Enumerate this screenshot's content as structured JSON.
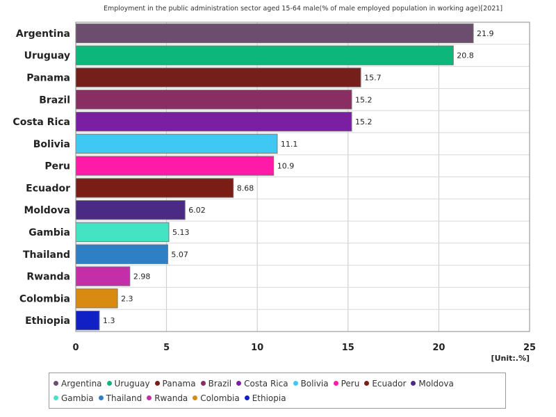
{
  "chart_data": {
    "type": "bar",
    "orientation": "horizontal",
    "title": "Employment in the public administration sector aged 15-64 male(% of male employed population in working age)[2021]",
    "unit_label": "[Unit:.%]",
    "xlim": [
      0,
      25
    ],
    "x_ticks": [
      "0",
      "5",
      "10",
      "15",
      "20",
      "25"
    ],
    "grid": true,
    "legend_position": "bottom",
    "categories": [
      "Argentina",
      "Uruguay",
      "Panama",
      "Brazil",
      "Costa Rica",
      "Bolivia",
      "Peru",
      "Ecuador",
      "Moldova",
      "Gambia",
      "Thailand",
      "Rwanda",
      "Colombia",
      "Ethiopia"
    ],
    "values": [
      21.9,
      20.8,
      15.7,
      15.2,
      15.2,
      11.1,
      10.9,
      8.68,
      6.02,
      5.13,
      5.07,
      2.98,
      2.3,
      1.3
    ],
    "value_labels": [
      "21.9",
      "20.8",
      "15.7",
      "15.2",
      "15.2",
      "11.1",
      "10.9",
      "8.68",
      "6.02",
      "5.13",
      "5.07",
      "2.98",
      "2.3",
      "1.3"
    ],
    "colors": [
      "#6b4d6e",
      "#0db67a",
      "#761f1a",
      "#8a2d62",
      "#7b1fa2",
      "#3fc8f4",
      "#ff1aa8",
      "#7a1d14",
      "#4a2a84",
      "#44e3c4",
      "#2f7fc4",
      "#c42ea8",
      "#d98a10",
      "#1020c4"
    ]
  }
}
